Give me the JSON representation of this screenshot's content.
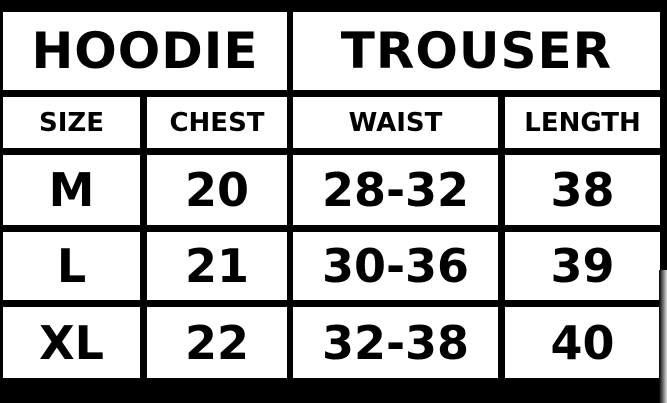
{
  "groups": {
    "hoodie": "HOODIE",
    "trouser": "TROUSER"
  },
  "columns": [
    "SIZE",
    "CHEST",
    "WAIST",
    "LENGTH"
  ],
  "rows": [
    [
      "M",
      "20",
      "28-32",
      "38"
    ],
    [
      "L",
      "21",
      "30-36",
      "39"
    ],
    [
      "XL",
      "22",
      "32-38",
      "40"
    ]
  ]
}
